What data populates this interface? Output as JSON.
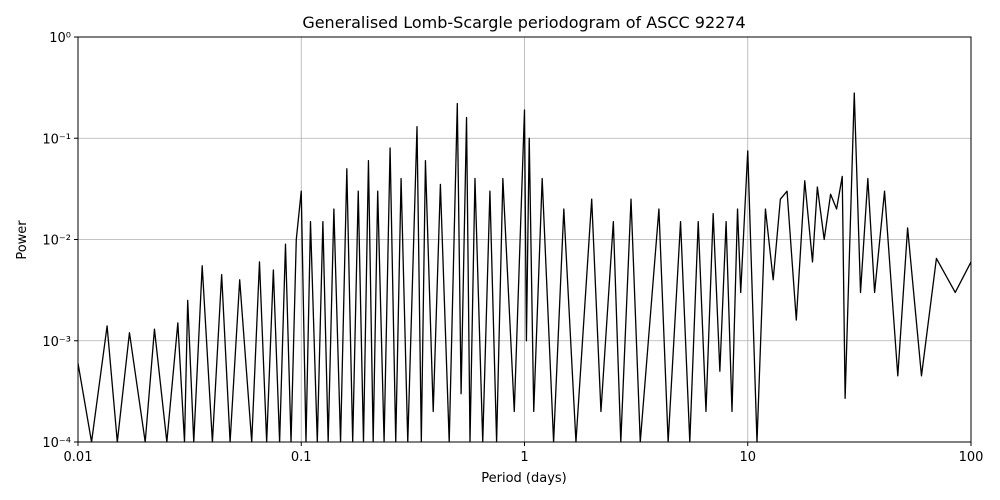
{
  "chart_data": {
    "type": "line",
    "title": "Generalised Lomb-Scargle periodogram of ASCC 92274",
    "x_label": "Period (days)",
    "y_label": "Power",
    "xscale": "log",
    "yscale": "log",
    "grid": true,
    "xlim": [
      0.01,
      100
    ],
    "ylim": [
      0.0001,
      1
    ],
    "xticks": [
      0.01,
      0.1,
      1,
      10,
      100
    ],
    "yticks": [
      {
        "value": 0.0001,
        "label": "10⁻⁴"
      },
      {
        "value": 0.001,
        "label": "10⁻³"
      },
      {
        "value": 0.01,
        "label": "10⁻²"
      },
      {
        "value": 0.1,
        "label": "10⁻¹"
      },
      {
        "value": 1,
        "label": "10⁰"
      }
    ],
    "series": [
      {
        "color": "#000000",
        "x": [
          0.01,
          0.0115,
          0.0135,
          0.015,
          0.017,
          0.02,
          0.022,
          0.025,
          0.028,
          0.03,
          0.031,
          0.033,
          0.036,
          0.04,
          0.044,
          0.048,
          0.053,
          0.06,
          0.065,
          0.07,
          0.075,
          0.08,
          0.085,
          0.09,
          0.095,
          0.1,
          0.105,
          0.11,
          0.118,
          0.125,
          0.132,
          0.14,
          0.15,
          0.16,
          0.17,
          0.18,
          0.19,
          0.2,
          0.21,
          0.22,
          0.235,
          0.25,
          0.265,
          0.28,
          0.3,
          0.33,
          0.345,
          0.36,
          0.39,
          0.42,
          0.46,
          0.5,
          0.52,
          0.55,
          0.57,
          0.6,
          0.65,
          0.7,
          0.75,
          0.8,
          0.9,
          1.0,
          1.02,
          1.05,
          1.1,
          1.2,
          1.35,
          1.5,
          1.7,
          2.0,
          2.2,
          2.5,
          2.7,
          3.0,
          3.3,
          4.0,
          4.4,
          5.0,
          5.5,
          6.0,
          6.5,
          7.0,
          7.5,
          8.0,
          8.5,
          9.0,
          9.3,
          10,
          11,
          12,
          13,
          14,
          15,
          16.5,
          18,
          19.5,
          20.5,
          22,
          23.5,
          25,
          26.5,
          27.3,
          30,
          32,
          34.5,
          37,
          41,
          47,
          52,
          60,
          70,
          85,
          100
        ],
        "values": [
          0.0006,
          0.0001,
          0.0014,
          0.0001,
          0.0012,
          0.0001,
          0.0013,
          0.0001,
          0.0015,
          0.0001,
          0.0025,
          0.0001,
          0.0055,
          0.0001,
          0.0045,
          0.0001,
          0.004,
          0.0001,
          0.006,
          0.0001,
          0.005,
          0.0001,
          0.009,
          0.0001,
          0.01,
          0.03,
          0.0001,
          0.015,
          0.0001,
          0.015,
          0.0001,
          0.02,
          0.0001,
          0.05,
          0.0001,
          0.03,
          0.0001,
          0.06,
          0.0001,
          0.03,
          0.0001,
          0.08,
          0.0001,
          0.04,
          0.0001,
          0.13,
          0.0001,
          0.06,
          0.0002,
          0.035,
          0.0001,
          0.22,
          0.0003,
          0.16,
          0.0001,
          0.04,
          0.0001,
          0.03,
          0.0001,
          0.04,
          0.0002,
          0.19,
          0.001,
          0.1,
          0.0002,
          0.04,
          0.0001,
          0.02,
          0.0001,
          0.025,
          0.0002,
          0.015,
          0.0001,
          0.025,
          0.0001,
          0.02,
          0.0001,
          0.015,
          0.0001,
          0.015,
          0.0002,
          0.018,
          0.0005,
          0.015,
          0.0002,
          0.02,
          0.003,
          0.075,
          0.0001,
          0.02,
          0.004,
          0.025,
          0.03,
          0.0016,
          0.038,
          0.006,
          0.033,
          0.01,
          0.028,
          0.02,
          0.042,
          0.00027,
          0.28,
          0.003,
          0.04,
          0.003,
          0.03,
          0.00045,
          0.013,
          0.00045,
          0.0065,
          0.003,
          0.006
        ]
      }
    ]
  }
}
